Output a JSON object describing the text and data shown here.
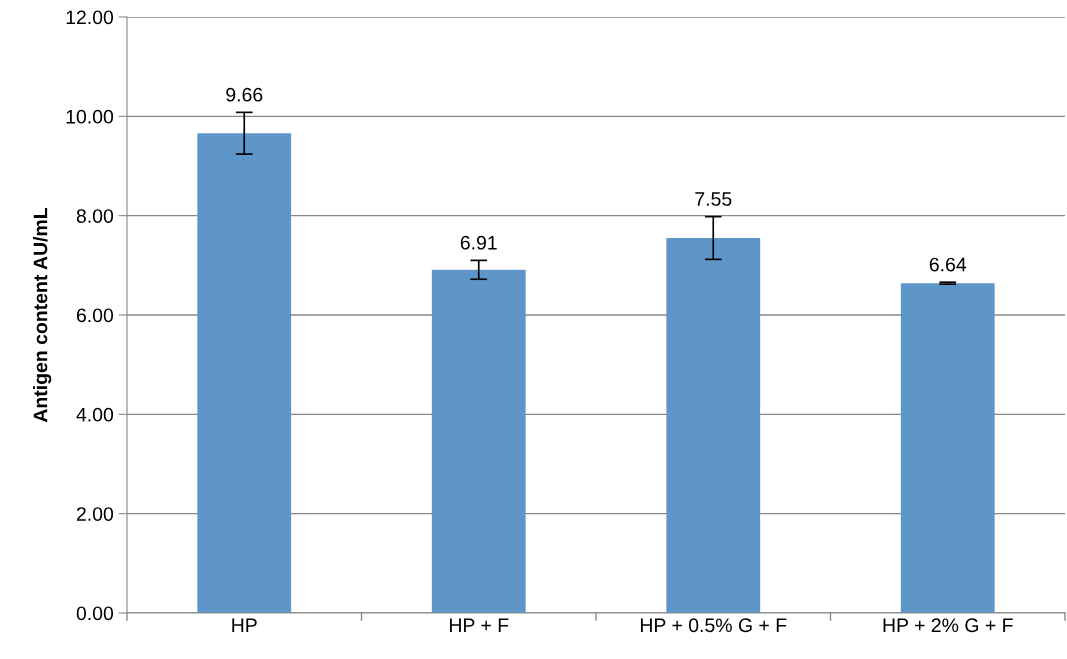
{
  "chart_data": {
    "type": "bar",
    "ylabel": "Antigen content AU/mL",
    "categories": [
      "HP",
      "HP + F",
      "HP + 0.5% G + F",
      "HP + 2% G + F"
    ],
    "values": [
      9.66,
      6.91,
      7.55,
      6.64
    ],
    "errors": [
      0.42,
      0.19,
      0.43,
      0.02
    ],
    "color": "#5f96c9",
    "ylim": [
      0,
      12
    ],
    "yticks": [
      {
        "value": 0,
        "label": "0.00"
      },
      {
        "value": 2,
        "label": "2.00"
      },
      {
        "value": 4,
        "label": "4.00"
      },
      {
        "value": 6,
        "label": "6.00"
      },
      {
        "value": 8,
        "label": "8.00"
      },
      {
        "value": 10,
        "label": "10.00"
      },
      {
        "value": 12,
        "label": "12.00"
      }
    ],
    "grid": "y",
    "data_labels": true
  }
}
